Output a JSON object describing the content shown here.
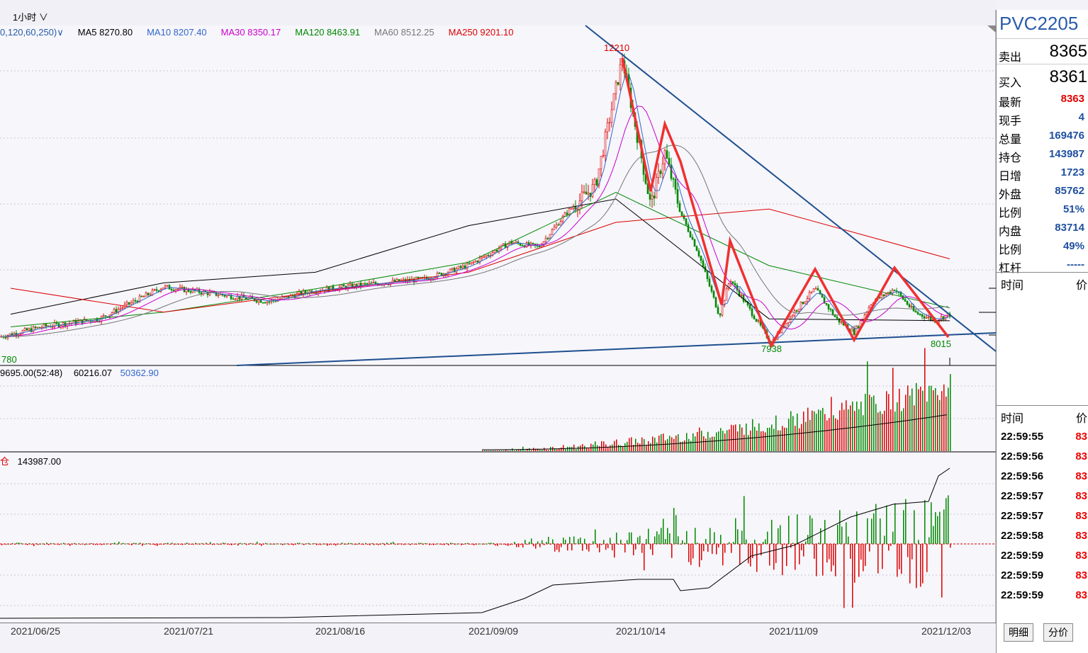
{
  "toolbar": {
    "timeframe": "1小时",
    "timeframe_arrow": "∨"
  },
  "ma_legend": {
    "params": "0,120,60,250)∨",
    "items": [
      {
        "label": "MA5 8270.80",
        "color": "#000000"
      },
      {
        "label": "MA10 8207.40",
        "color": "#3366cc"
      },
      {
        "label": "MA30 8350.17",
        "color": "#cc00cc"
      },
      {
        "label": "MA120 8463.91",
        "color": "#008800"
      },
      {
        "label": "MA60 8512.25",
        "color": "#777777"
      },
      {
        "label": "MA250 9201.10",
        "color": "#dd0000"
      }
    ]
  },
  "volume_legend": {
    "v1": "9695.00(52:48)",
    "v2": "60216.07",
    "v3": "50362.90"
  },
  "oi_legend": {
    "prefix": "仓",
    "value": "143987.00"
  },
  "price_labels": {
    "peak": "12210",
    "low1": "7938",
    "low2": "8015",
    "left": "780"
  },
  "x_dates": [
    "2021/06/25",
    "2021/07/21",
    "2021/08/16",
    "2021/09/09",
    "2021/10/14",
    "2021/11/09",
    "2021/12/03"
  ],
  "quote": {
    "symbol": "PVC2205",
    "sell_label": "卖出",
    "sell": "8365",
    "buy_label": "买入",
    "buy": "8361",
    "rows": [
      {
        "k": "最新",
        "v": "8363",
        "color": "#e00000"
      },
      {
        "k": "现手",
        "v": "4",
        "color": "#1f4f9f"
      },
      {
        "k": "总量",
        "v": "169476",
        "color": "#1f4f9f"
      },
      {
        "k": "持仓",
        "v": "143987",
        "color": "#1f4f9f"
      },
      {
        "k": "日增",
        "v": "1723",
        "color": "#1f4f9f"
      },
      {
        "k": "外盘",
        "v": "85762",
        "color": "#1f4f9f"
      },
      {
        "k": "比例",
        "v": "51%",
        "color": "#1f4f9f"
      },
      {
        "k": "内盘",
        "v": "83714",
        "color": "#1f4f9f"
      },
      {
        "k": "比例",
        "v": "49%",
        "color": "#1f4f9f"
      },
      {
        "k": "杠杆",
        "v": "-----",
        "color": "#1f4f9f"
      }
    ],
    "time_header": {
      "k": "时间",
      "v": "价"
    },
    "ticks_header": {
      "k": "时间",
      "v": "价"
    },
    "ticks": [
      {
        "t": "22:59:55",
        "p": "83"
      },
      {
        "t": "22:59:56",
        "p": "83"
      },
      {
        "t": "22:59:56",
        "p": "83"
      },
      {
        "t": "22:59:57",
        "p": "83"
      },
      {
        "t": "22:59:57",
        "p": "83"
      },
      {
        "t": "22:59:58",
        "p": "83"
      },
      {
        "t": "22:59:59",
        "p": "83"
      },
      {
        "t": "22:59:59",
        "p": "83"
      },
      {
        "t": "22:59:59",
        "p": "83"
      }
    ],
    "tabs": [
      "明细",
      "分价"
    ]
  },
  "chart_data": {
    "type": "line",
    "x": [
      "2021/06/25",
      "2021/07/21",
      "2021/08/16",
      "2021/09/09",
      "2021/10/14",
      "2021/11/09",
      "2021/12/03"
    ],
    "series": [
      {
        "name": "MA5",
        "values": [
          8370,
          8840,
          9000,
          9700,
          10100,
          8300,
          8271
        ]
      },
      {
        "name": "MA120",
        "values": [
          8180,
          8400,
          8750,
          9150,
          10200,
          9100,
          8464
        ]
      },
      {
        "name": "MA250",
        "values": [
          8760,
          8400,
          8700,
          9000,
          9750,
          9950,
          9201
        ]
      }
    ],
    "ylim": [
      7600,
      12600
    ],
    "annotations": [
      "12210",
      "7938",
      "8015"
    ]
  }
}
